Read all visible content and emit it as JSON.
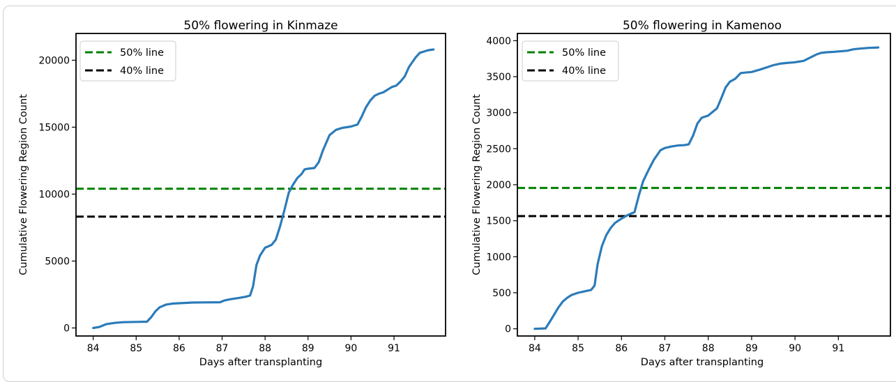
{
  "colors": {
    "series": "#2b7bb9",
    "line50": "#008000",
    "line40": "#000000",
    "frame": "#cfcfcf"
  },
  "chart_data": [
    {
      "type": "line",
      "title": "50% flowering in Kinmaze",
      "xlabel": "Days after transplanting",
      "ylabel": "Cumulative Flowering Region Count",
      "xlim": [
        83.6,
        92.2
      ],
      "ylim": [
        -600,
        22000
      ],
      "xticks": [
        84,
        85,
        86,
        87,
        88,
        89,
        90,
        91
      ],
      "yticks": [
        0,
        5000,
        10000,
        15000,
        20000
      ],
      "grid": false,
      "legend_position": "top-left",
      "legend": [
        "50% line",
        "40% line"
      ],
      "hlines": [
        {
          "name": "50% line",
          "y": 10400,
          "color": "#008000",
          "style": "dashed"
        },
        {
          "name": "40% line",
          "y": 8320,
          "color": "#000000",
          "style": "dashed"
        }
      ],
      "series": [
        {
          "color": "#2b7bb9",
          "x": [
            84.0,
            84.15,
            84.3,
            84.5,
            84.7,
            85.0,
            85.25,
            85.35,
            85.45,
            85.55,
            85.7,
            85.85,
            86.0,
            86.2,
            86.3,
            86.6,
            86.95,
            87.05,
            87.2,
            87.4,
            87.55,
            87.65,
            87.72,
            87.8,
            87.88,
            88.0,
            88.15,
            88.25,
            88.35,
            88.45,
            88.55,
            88.65,
            88.75,
            88.85,
            88.92,
            89.0,
            89.15,
            89.25,
            89.35,
            89.5,
            89.65,
            89.8,
            90.0,
            90.15,
            90.25,
            90.35,
            90.45,
            90.55,
            90.65,
            90.75,
            90.95,
            91.05,
            91.15,
            91.25,
            91.35,
            91.5,
            91.6,
            91.7,
            91.8,
            91.92
          ],
          "y": [
            0,
            80,
            280,
            380,
            430,
            450,
            470,
            800,
            1250,
            1550,
            1750,
            1820,
            1850,
            1880,
            1900,
            1910,
            1920,
            2050,
            2150,
            2250,
            2330,
            2420,
            3100,
            4700,
            5400,
            6000,
            6200,
            6600,
            7600,
            8800,
            10100,
            10700,
            11200,
            11500,
            11850,
            11900,
            11950,
            12400,
            13300,
            14400,
            14800,
            14950,
            15050,
            15200,
            15800,
            16500,
            17000,
            17350,
            17500,
            17600,
            18000,
            18100,
            18400,
            18800,
            19500,
            20200,
            20550,
            20650,
            20750,
            20800
          ]
        }
      ]
    },
    {
      "type": "line",
      "title": "50% flowering in Kamenoo",
      "xlabel": "Days after transplanting",
      "ylabel": "Cumulative Flowering Region Count",
      "xlim": [
        83.6,
        92.2
      ],
      "ylim": [
        -100,
        4100
      ],
      "xticks": [
        84,
        85,
        86,
        87,
        88,
        89,
        90,
        91
      ],
      "yticks": [
        0,
        500,
        1000,
        1500,
        2000,
        2500,
        3000,
        3500,
        4000
      ],
      "grid": false,
      "legend_position": "top-left",
      "legend": [
        "50% line",
        "40% line"
      ],
      "hlines": [
        {
          "name": "50% line",
          "y": 1955,
          "color": "#008000",
          "style": "dashed"
        },
        {
          "name": "40% line",
          "y": 1564,
          "color": "#000000",
          "style": "dashed"
        }
      ],
      "series": [
        {
          "color": "#2b7bb9",
          "x": [
            84.0,
            84.25,
            84.35,
            84.45,
            84.55,
            84.65,
            84.75,
            84.85,
            85.0,
            85.15,
            85.3,
            85.38,
            85.45,
            85.55,
            85.65,
            85.75,
            85.85,
            86.0,
            86.15,
            86.3,
            86.4,
            86.5,
            86.62,
            86.75,
            86.9,
            87.0,
            87.15,
            87.3,
            87.45,
            87.55,
            87.65,
            87.75,
            87.85,
            88.0,
            88.1,
            88.2,
            88.3,
            88.4,
            88.5,
            88.62,
            88.75,
            88.9,
            89.0,
            89.2,
            89.35,
            89.5,
            89.65,
            89.8,
            90.0,
            90.2,
            90.3,
            90.4,
            90.5,
            90.6,
            90.75,
            90.9,
            91.0,
            91.2,
            91.35,
            91.5,
            91.7,
            91.92
          ],
          "y": [
            0,
            5,
            100,
            200,
            300,
            380,
            430,
            470,
            500,
            520,
            540,
            600,
            900,
            1150,
            1300,
            1400,
            1470,
            1530,
            1580,
            1620,
            1850,
            2050,
            2200,
            2350,
            2480,
            2510,
            2530,
            2545,
            2550,
            2560,
            2680,
            2850,
            2930,
            2960,
            3010,
            3060,
            3200,
            3350,
            3430,
            3470,
            3550,
            3560,
            3565,
            3600,
            3630,
            3660,
            3680,
            3690,
            3700,
            3720,
            3750,
            3780,
            3810,
            3830,
            3840,
            3845,
            3850,
            3860,
            3880,
            3890,
            3900,
            3905
          ]
        }
      ]
    }
  ]
}
